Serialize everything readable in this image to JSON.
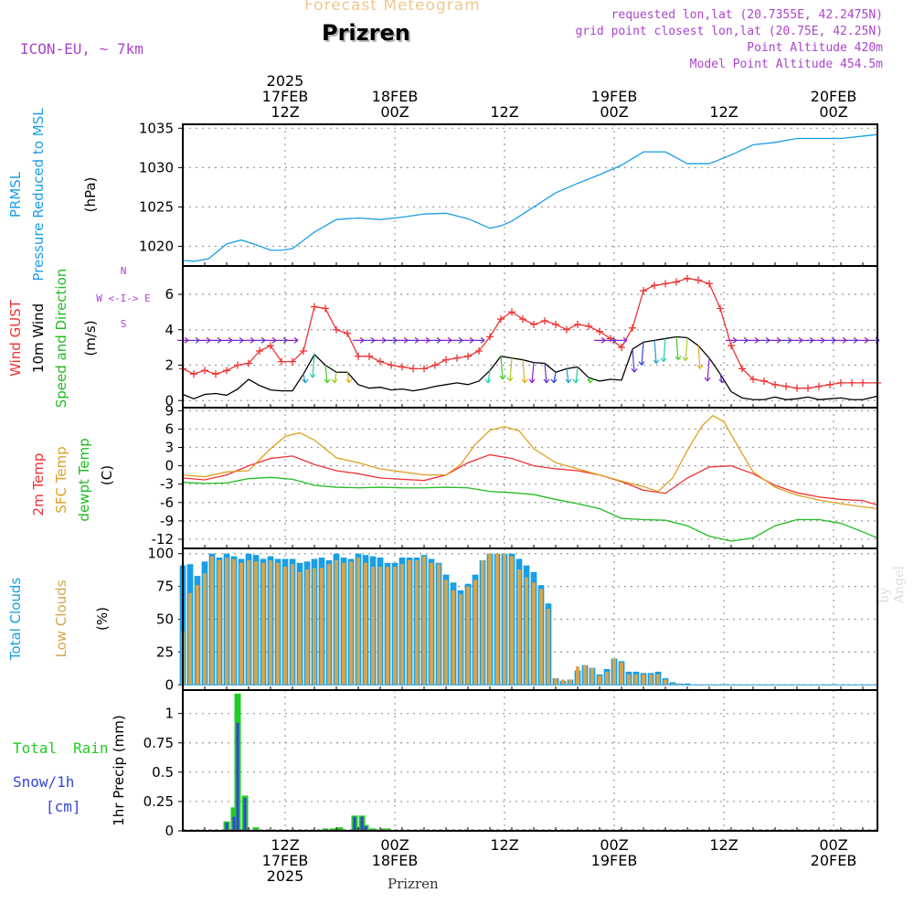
{
  "header": {
    "title": "Forecast Meteogram",
    "location": "Prizren",
    "model": "ICON-EU, ~ 7km",
    "requested": "requested lon,lat (20.7355E, 42.2475N)",
    "gridpoint": "grid point closest lon,lat (20.75E, 42.25N)",
    "altitude": "Point Altitude 420m",
    "model_altitude": "Model Point Altitude 454.5m",
    "footer": "Prizren",
    "watermark": "by Angel"
  },
  "colors": {
    "pressure": "#1a9ee5",
    "gust": "#ee3333",
    "wind": "#000000",
    "temp2m": "#ee3333",
    "sfc": "#e0a020",
    "dewpt": "#22bb22",
    "total_clouds": "#1a9ee5",
    "low_clouds": "#d9a54a",
    "rain": "#22cc22",
    "snow": "#3344dd",
    "purple": "#aa44cc"
  },
  "chart_data": [
    {
      "type": "line",
      "panel": "pressure",
      "panel_labels": [
        "PRMSL",
        "Pressure Reduced to MSL"
      ],
      "ylabel": "(hPa)",
      "yticks": [
        1020,
        1025,
        1030,
        1035
      ],
      "ylim": [
        1017.5,
        1035.5
      ],
      "series": [
        {
          "name": "PRMSL",
          "x": [
            0,
            3,
            7,
            12,
            16,
            20,
            24,
            27,
            30,
            36,
            42,
            48,
            54,
            60,
            66,
            72,
            78,
            84,
            87,
            90,
            96,
            102,
            108,
            114,
            120,
            126,
            132,
            138,
            144,
            150,
            156,
            162,
            168,
            174,
            180,
            186,
            190
          ],
          "values": [
            1018.2,
            1018.1,
            1018.4,
            1020.3,
            1020.8,
            1020.2,
            1019.5,
            1019.5,
            1019.7,
            1021.8,
            1023.4,
            1023.6,
            1023.4,
            1023.7,
            1024.1,
            1024.2,
            1023.5,
            1022.3,
            1022.6,
            1023.2,
            1025.0,
            1026.8,
            1028.0,
            1029.1,
            1030.3,
            1032.0,
            1032.0,
            1030.5,
            1030.5,
            1031.6,
            1032.9,
            1033.2,
            1033.7,
            1033.7,
            1033.7,
            1034.0,
            1034.2
          ]
        }
      ]
    },
    {
      "type": "line",
      "panel": "wind",
      "panel_labels": [
        "Wind GUST",
        "10m Wind",
        "Speed and Direction"
      ],
      "ylabel": "(m/s)",
      "compass": [
        "N",
        "W <-I-> E",
        "S"
      ],
      "yticks": [
        0,
        2,
        4,
        6
      ],
      "ylim": [
        -0.4,
        7.6
      ],
      "series": [
        {
          "name": "Wind GUST",
          "x": [
            0,
            3,
            6,
            9,
            12,
            15,
            18,
            21,
            24,
            27,
            30,
            33,
            36,
            39,
            42,
            45,
            48,
            51,
            54,
            57,
            60,
            63,
            66,
            69,
            72,
            75,
            78,
            81,
            84,
            87,
            90,
            93,
            96,
            99,
            102,
            105,
            108,
            111,
            114,
            117,
            120,
            123,
            126,
            129,
            132,
            135,
            138,
            141,
            144,
            147,
            150,
            153,
            156,
            159,
            162,
            165,
            168,
            171,
            174,
            177,
            180,
            183,
            186,
            190
          ],
          "values": [
            1.8,
            1.5,
            1.7,
            1.5,
            1.7,
            2.0,
            2.1,
            2.8,
            3.1,
            2.2,
            2.2,
            2.8,
            5.3,
            5.2,
            4.0,
            3.8,
            2.5,
            2.5,
            2.2,
            2.0,
            1.9,
            1.8,
            1.8,
            2.0,
            2.3,
            2.4,
            2.5,
            2.8,
            3.6,
            4.6,
            5.0,
            4.6,
            4.3,
            4.5,
            4.3,
            4.0,
            4.3,
            4.2,
            3.9,
            3.5,
            3.0,
            4.1,
            6.2,
            6.5,
            6.6,
            6.7,
            6.9,
            6.8,
            6.6,
            5.2,
            3.1,
            1.8,
            1.2,
            1.1,
            0.9,
            0.8,
            0.7,
            0.7,
            0.8,
            0.9,
            1.0,
            1.0,
            1.0,
            1.0
          ]
        },
        {
          "name": "10m Wind",
          "x": [
            0,
            3,
            6,
            9,
            12,
            15,
            18,
            21,
            24,
            27,
            30,
            33,
            36,
            39,
            42,
            45,
            48,
            51,
            54,
            57,
            60,
            63,
            66,
            69,
            72,
            75,
            78,
            81,
            84,
            87,
            90,
            93,
            96,
            99,
            102,
            105,
            108,
            111,
            114,
            117,
            120,
            123,
            126,
            129,
            132,
            135,
            138,
            141,
            144,
            147,
            150,
            153,
            156,
            159,
            162,
            165,
            168,
            171,
            174,
            177,
            180,
            183,
            186,
            190
          ],
          "values": [
            0.35,
            0.1,
            0.35,
            0.4,
            0.3,
            0.65,
            1.2,
            0.85,
            0.6,
            0.55,
            0.55,
            1.5,
            2.6,
            2.0,
            1.6,
            1.6,
            0.9,
            0.7,
            0.75,
            0.6,
            0.65,
            0.55,
            0.65,
            0.8,
            0.9,
            1.0,
            0.9,
            1.1,
            1.7,
            2.5,
            2.4,
            2.3,
            2.15,
            2.1,
            1.6,
            1.8,
            1.9,
            1.3,
            1.1,
            1.2,
            1.15,
            2.9,
            3.3,
            3.4,
            3.5,
            3.6,
            3.55,
            3.1,
            2.4,
            1.5,
            0.5,
            0.15,
            0.05,
            0.05,
            0.2,
            0.05,
            0.1,
            0.2,
            0.05,
            0.1,
            0.15,
            0.05,
            0.05,
            0.25
          ]
        }
      ],
      "arrow_cycle": [
        "#8822cc",
        "#6633cc",
        "#3344dd",
        "#2299cc",
        "#22ccaa",
        "#44cc22",
        "#aacc22",
        "#e0b020"
      ]
    },
    {
      "type": "line",
      "panel": "temperature",
      "panel_labels": [
        "2m Temp",
        "SFC Temp",
        "dewpt Temp"
      ],
      "ylabel": "(C)",
      "yticks": [
        -12,
        -9,
        -6,
        -3,
        0,
        3,
        6,
        9
      ],
      "ylim": [
        -13.5,
        9.5
      ],
      "series": [
        {
          "name": "2m Temp",
          "x": [
            0,
            6,
            12,
            18,
            24,
            30,
            36,
            42,
            48,
            54,
            60,
            66,
            72,
            78,
            84,
            90,
            96,
            102,
            108,
            114,
            120,
            126,
            132,
            138,
            144,
            150,
            156,
            162,
            168,
            174,
            180,
            186,
            190
          ],
          "values": [
            -2.0,
            -2.3,
            -1.5,
            0.0,
            1.2,
            1.6,
            0.2,
            -0.8,
            -1.3,
            -2.0,
            -2.2,
            -2.4,
            -1.5,
            0.5,
            1.8,
            1.2,
            0.0,
            -0.5,
            -0.8,
            -1.5,
            -2.6,
            -4.0,
            -4.5,
            -2.0,
            -0.2,
            0.0,
            -1.3,
            -3.2,
            -4.4,
            -5.1,
            -5.5,
            -5.7,
            -6.4
          ]
        },
        {
          "name": "SFC Temp",
          "x": [
            0,
            6,
            12,
            18,
            24,
            28,
            32,
            36,
            42,
            48,
            54,
            60,
            66,
            72,
            76,
            80,
            84,
            88,
            92,
            96,
            102,
            108,
            114,
            120,
            126,
            130,
            134,
            138,
            142,
            145,
            148,
            152,
            156,
            162,
            168,
            174,
            180,
            186,
            190
          ],
          "values": [
            -1.5,
            -1.8,
            -1.0,
            -0.8,
            2.8,
            4.8,
            5.4,
            4.2,
            1.3,
            0.5,
            -0.5,
            -1.0,
            -1.5,
            -1.5,
            0.2,
            3.5,
            5.8,
            6.4,
            5.7,
            2.8,
            0.5,
            -0.5,
            -1.5,
            -2.5,
            -3.4,
            -4.2,
            -2.0,
            2.5,
            6.5,
            8.2,
            7.2,
            3.0,
            -1.0,
            -3.5,
            -4.8,
            -5.6,
            -6.2,
            -6.7,
            -7.0
          ]
        },
        {
          "name": "dewpt Temp",
          "x": [
            0,
            6,
            12,
            18,
            24,
            30,
            36,
            42,
            48,
            54,
            60,
            66,
            72,
            78,
            84,
            90,
            96,
            102,
            108,
            114,
            120,
            126,
            132,
            138,
            144,
            150,
            156,
            162,
            168,
            174,
            180,
            186,
            190
          ],
          "values": [
            -2.7,
            -2.9,
            -2.8,
            -2.1,
            -1.9,
            -2.2,
            -3.2,
            -3.5,
            -3.6,
            -3.5,
            -3.6,
            -3.6,
            -3.5,
            -3.6,
            -4.2,
            -4.4,
            -4.7,
            -5.5,
            -6.2,
            -7.0,
            -8.6,
            -8.8,
            -8.9,
            -9.8,
            -11.5,
            -12.3,
            -11.8,
            -9.8,
            -8.8,
            -8.8,
            -9.4,
            -10.8,
            -11.8
          ]
        }
      ]
    },
    {
      "type": "bar",
      "panel": "clouds",
      "panel_labels": [
        "Total Clouds",
        "Low Clouds"
      ],
      "ylabel": "(%)",
      "yticks": [
        0,
        25,
        50,
        75,
        100
      ],
      "ylim": [
        -4,
        104
      ],
      "x": [
        0,
        2,
        4,
        6,
        8,
        10,
        12,
        14,
        16,
        18,
        20,
        22,
        24,
        26,
        28,
        30,
        32,
        34,
        36,
        38,
        40,
        42,
        44,
        46,
        48,
        50,
        52,
        54,
        56,
        58,
        60,
        62,
        64,
        66,
        68,
        70,
        72,
        74,
        76,
        78,
        80,
        82,
        84,
        86,
        88,
        90,
        92,
        94,
        96,
        98,
        100,
        102,
        104,
        106,
        108,
        110,
        112,
        114,
        116,
        118,
        120,
        122,
        124,
        126,
        128,
        130,
        132,
        134,
        136,
        138,
        140,
        142,
        144,
        146,
        148,
        150,
        152,
        154,
        156,
        158,
        160,
        162,
        164,
        166,
        168,
        170,
        172,
        174,
        176,
        178,
        180,
        182,
        184,
        186,
        188
      ],
      "series": [
        {
          "name": "Total Clouds",
          "values": [
            91,
            92,
            83,
            94,
            100,
            97,
            100,
            98,
            96,
            100,
            99,
            96,
            98,
            96,
            96,
            96,
            93,
            94,
            96,
            97,
            95,
            100,
            97,
            96,
            100,
            99,
            98,
            97,
            93,
            93,
            97,
            97,
            97,
            99,
            96,
            93,
            84,
            78,
            72,
            77,
            84,
            95,
            100,
            100,
            100,
            100,
            96,
            91,
            86,
            76,
            62,
            5,
            3,
            4,
            11,
            15,
            13,
            8,
            12,
            20,
            18,
            10,
            10,
            9,
            9,
            10,
            5,
            2,
            1,
            1,
            0,
            0,
            0,
            0,
            0,
            0,
            0,
            0,
            0,
            0,
            0,
            0,
            0,
            0,
            0,
            0,
            0,
            0,
            0,
            0,
            0,
            0,
            0,
            0,
            0
          ]
        },
        {
          "name": "Low Clouds",
          "values": [
            41,
            70,
            76,
            85,
            98,
            95,
            97,
            96,
            93,
            95,
            94,
            93,
            95,
            93,
            90,
            92,
            86,
            88,
            89,
            89,
            92,
            95,
            93,
            94,
            97,
            93,
            90,
            90,
            90,
            90,
            92,
            95,
            95,
            98,
            93,
            92,
            80,
            72,
            69,
            75,
            80,
            95,
            100,
            100,
            100,
            98,
            88,
            82,
            78,
            73,
            58,
            5,
            4,
            4,
            14,
            15,
            13,
            7,
            10,
            20,
            17,
            8,
            8,
            8,
            8,
            8,
            4,
            1,
            1,
            0,
            0,
            0,
            0,
            0,
            0,
            0,
            0,
            0,
            0,
            0,
            0,
            0,
            0,
            0,
            0,
            0,
            0,
            0,
            0,
            0,
            0,
            0,
            0,
            0,
            0
          ]
        }
      ]
    },
    {
      "type": "bar",
      "panel": "precip",
      "panel_labels": [
        "Total Rain",
        "Snow/1h",
        "[cm]"
      ],
      "ylabel": "1hr Precip (mm)",
      "yticks": [
        0,
        0.25,
        0.5,
        0.75,
        1
      ],
      "yticklabels": [
        "0",
        "0.25",
        "0.5",
        "0.75",
        "1"
      ],
      "ylim": [
        0,
        1.2
      ],
      "series": [
        {
          "name": "Total Rain",
          "x": [
            12,
            14,
            15,
            17,
            20,
            39,
            41,
            43,
            47,
            49,
            50,
            52,
            55,
            56
          ],
          "values": [
            0.08,
            0.2,
            1.17,
            0.3,
            0.03,
            0.02,
            0.02,
            0.03,
            0.13,
            0.13,
            0.05,
            0.02,
            0.02,
            0.02
          ]
        },
        {
          "name": "Snow/1h",
          "x": [
            12,
            14,
            15,
            17,
            47,
            49,
            50
          ],
          "values": [
            0.07,
            0.12,
            0.92,
            0.28,
            0.12,
            0.12,
            0.04
          ]
        }
      ]
    }
  ],
  "axis": {
    "xlim": [
      0,
      190
    ],
    "gridlines_x": [
      28,
      58,
      88,
      118,
      148,
      178
    ],
    "top_ticks": [
      {
        "x": 28,
        "lines": [
          "2025",
          "17FEB",
          "12Z"
        ]
      },
      {
        "x": 58,
        "lines": [
          "18FEB",
          "00Z"
        ]
      },
      {
        "x": 88,
        "lines": [
          "12Z"
        ]
      },
      {
        "x": 118,
        "lines": [
          "19FEB",
          "00Z"
        ]
      },
      {
        "x": 148,
        "lines": [
          "12Z"
        ]
      },
      {
        "x": 178,
        "lines": [
          "20FEB",
          "00Z"
        ]
      }
    ],
    "bottom_ticks": [
      {
        "x": 28,
        "lines": [
          "12Z",
          "17FEB",
          "2025"
        ]
      },
      {
        "x": 58,
        "lines": [
          "00Z",
          "18FEB"
        ]
      },
      {
        "x": 88,
        "lines": [
          "12Z"
        ]
      },
      {
        "x": 118,
        "lines": [
          "00Z",
          "19FEB"
        ]
      },
      {
        "x": 148,
        "lines": [
          "12Z"
        ]
      },
      {
        "x": 178,
        "lines": [
          "00Z",
          "20FEB"
        ]
      }
    ]
  }
}
